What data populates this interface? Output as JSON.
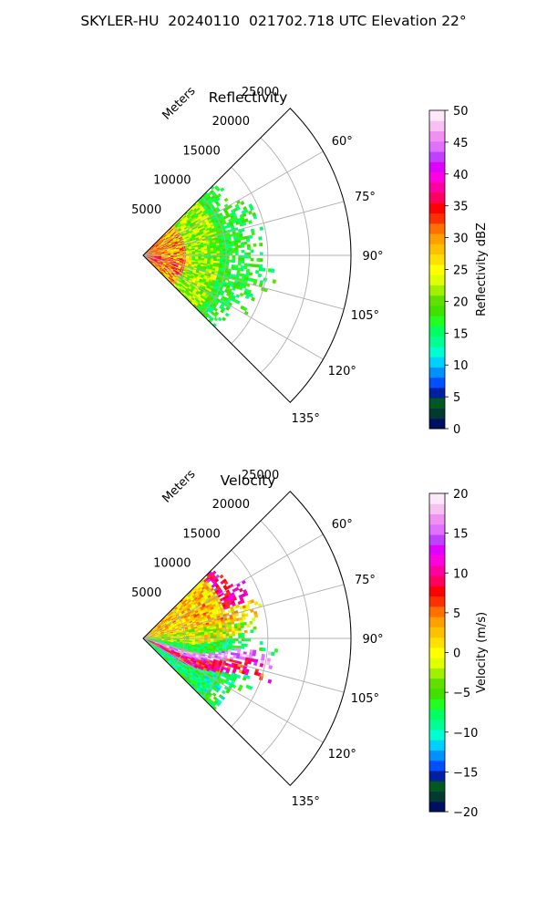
{
  "page": {
    "title": "SKYLER-HU  20240110  021702.718 UTC Elevation 22°"
  },
  "chart_data": [
    {
      "type": "heatmap",
      "projection": "polar sector",
      "title": "Reflectivity",
      "radial_axis_label": "Meters",
      "radial_ticks": [
        5000,
        10000,
        15000,
        20000,
        25000
      ],
      "radial_tick_labels": [
        "5000",
        "10000",
        "15000",
        "20000",
        "25000"
      ],
      "radial_range": [
        0,
        25000
      ],
      "azimuth_range_deg": [
        45,
        135
      ],
      "azimuth_ticks_deg": [
        60,
        75,
        90,
        105,
        120,
        135
      ],
      "azimuth_tick_labels": [
        "60°",
        "75°",
        "90°",
        "105°",
        "120°",
        "135°"
      ],
      "data_extent_m": 17000,
      "colorbar": {
        "label": "Reflectivity dBZ",
        "range": [
          0,
          50
        ],
        "ticks": [
          0,
          5,
          10,
          15,
          20,
          25,
          30,
          35,
          40,
          45,
          50
        ],
        "tick_labels": [
          "0",
          "5",
          "10",
          "15",
          "20",
          "25",
          "30",
          "35",
          "40",
          "45",
          "50"
        ],
        "colors": [
          "#001060",
          "#003a30",
          "#005a20",
          "#0020a0",
          "#0050ff",
          "#0090ff",
          "#00d0ff",
          "#00ffd0",
          "#00ff90",
          "#00ff60",
          "#20ff20",
          "#40e000",
          "#60e000",
          "#a0f000",
          "#e0ff00",
          "#ffff00",
          "#ffe000",
          "#ffc000",
          "#ffa000",
          "#ff7000",
          "#ff3000",
          "#ff0000",
          "#ff0060",
          "#ff00a0",
          "#ff00e0",
          "#e000ff",
          "#c040ff",
          "#e070ff",
          "#f090f0",
          "#f8c0f0",
          "#fde8fa"
        ]
      },
      "grid": true
    },
    {
      "type": "heatmap",
      "projection": "polar sector",
      "title": "Velocity",
      "radial_axis_label": "Meters",
      "radial_ticks": [
        5000,
        10000,
        15000,
        20000,
        25000
      ],
      "radial_tick_labels": [
        "5000",
        "10000",
        "15000",
        "20000",
        "25000"
      ],
      "radial_range": [
        0,
        25000
      ],
      "azimuth_range_deg": [
        45,
        135
      ],
      "azimuth_ticks_deg": [
        60,
        75,
        90,
        105,
        120,
        135
      ],
      "azimuth_tick_labels": [
        "60°",
        "75°",
        "90°",
        "105°",
        "120°",
        "135°"
      ],
      "data_extent_m": 17000,
      "colorbar": {
        "label": "Velocity (m/s)",
        "range": [
          -20,
          20
        ],
        "ticks": [
          -20,
          -15,
          -10,
          -5,
          0,
          5,
          10,
          15,
          20
        ],
        "tick_labels": [
          "−20",
          "−15",
          "−10",
          "−5",
          "0",
          "5",
          "10",
          "15",
          "20"
        ],
        "colors": [
          "#001060",
          "#003a30",
          "#005a20",
          "#0020a0",
          "#0050ff",
          "#0090ff",
          "#00d0ff",
          "#00ffd0",
          "#00ff90",
          "#00ff60",
          "#20ff20",
          "#40e000",
          "#60e000",
          "#a0f000",
          "#e0ff00",
          "#ffff00",
          "#ffe000",
          "#ffc000",
          "#ffa000",
          "#ff7000",
          "#ff3000",
          "#ff0000",
          "#ff0060",
          "#ff00a0",
          "#ff00e0",
          "#e000ff",
          "#c040ff",
          "#e070ff",
          "#f090f0",
          "#f8c0f0",
          "#fde8fa"
        ]
      },
      "grid": true
    }
  ]
}
